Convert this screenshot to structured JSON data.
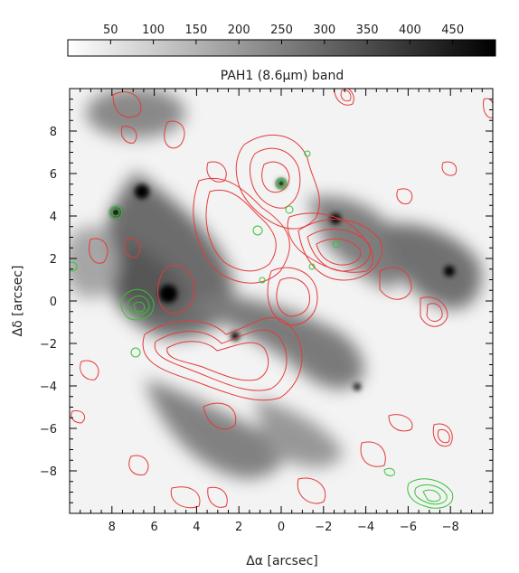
{
  "chart_data": {
    "type": "heatmap",
    "title": "PAH1 (8.6μm) band",
    "xlabel": "Δα [arcsec]",
    "ylabel": "Δδ [arcsec]",
    "xlim": [
      10,
      -10
    ],
    "ylim": [
      -10,
      10
    ],
    "x_ticks": [
      8,
      6,
      4,
      2,
      0,
      -2,
      -4,
      -6,
      -8
    ],
    "y_ticks": [
      8,
      6,
      4,
      2,
      0,
      -2,
      -4,
      -6,
      -8
    ],
    "colorbar": {
      "range": [
        0,
        500
      ],
      "ticks": [
        50,
        100,
        150,
        200,
        250,
        300,
        350,
        400,
        450
      ],
      "colormap": "inverted greyscale"
    },
    "contour_colors": {
      "red": "#e53a3a",
      "green": "#35c435"
    },
    "bright_sources": [
      {
        "x": 5.3,
        "y": 4.5
      },
      {
        "x": 5.0,
        "y": 0.6
      },
      {
        "x": 7.5,
        "y": 4.1
      },
      {
        "x": 0.0,
        "y": 5.6
      },
      {
        "x": -2.0,
        "y": 3.8
      },
      {
        "x": 2.2,
        "y": -2.5
      }
    ]
  }
}
